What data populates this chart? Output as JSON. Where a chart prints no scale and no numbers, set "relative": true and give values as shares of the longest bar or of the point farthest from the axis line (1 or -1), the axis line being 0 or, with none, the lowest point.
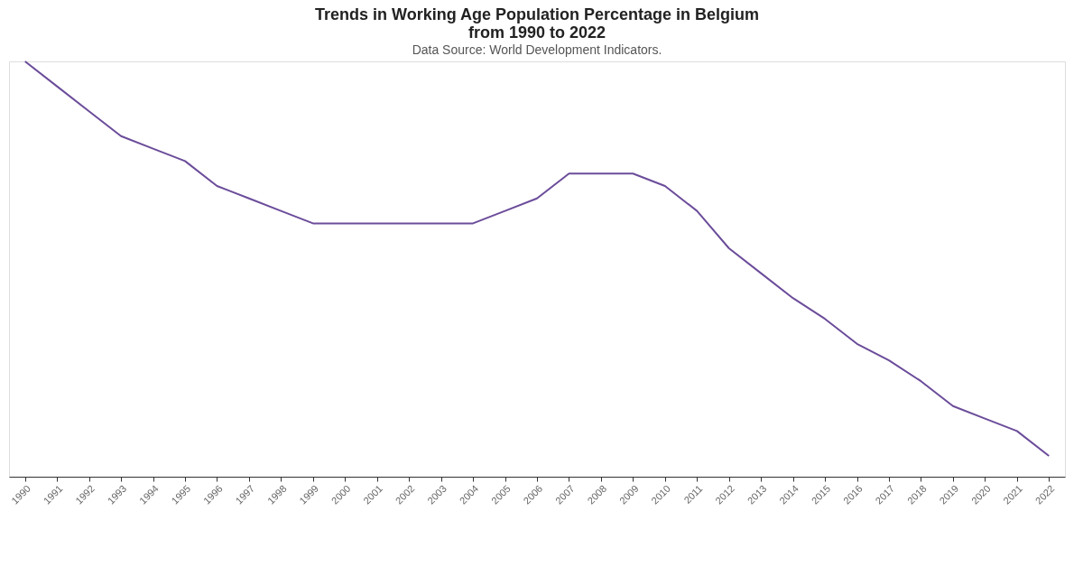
{
  "chart_data": {
    "type": "line",
    "title": "Trends in Working Age Population Percentage in Belgium",
    "subtitle": "from 1990 to 2022",
    "annotations": [
      "Data Source: World Development Indicators."
    ],
    "categories": [
      "1990",
      "1991",
      "1992",
      "1993",
      "1994",
      "1995",
      "1996",
      "1997",
      "1998",
      "1999",
      "2000",
      "2001",
      "2002",
      "2003",
      "2004",
      "2005",
      "2006",
      "2007",
      "2008",
      "2009",
      "2010",
      "2011",
      "2012",
      "2013",
      "2014",
      "2015",
      "2016",
      "2017",
      "2018",
      "2019",
      "2020",
      "2021",
      "2022"
    ],
    "relative": true,
    "series": [
      {
        "color": "#6b4c9a",
        "values": [
          1.0,
          0.94,
          0.88,
          0.82,
          0.79,
          0.76,
          0.7,
          0.67,
          0.64,
          0.61,
          0.61,
          0.61,
          0.61,
          0.61,
          0.61,
          0.64,
          0.67,
          0.73,
          0.73,
          0.73,
          0.7,
          0.64,
          0.55,
          0.49,
          0.43,
          0.38,
          0.32,
          0.28,
          0.23,
          0.17,
          0.14,
          0.11,
          0.05
        ]
      }
    ],
    "grid": false,
    "legend": false,
    "marker": "none",
    "line_style": "solid"
  }
}
